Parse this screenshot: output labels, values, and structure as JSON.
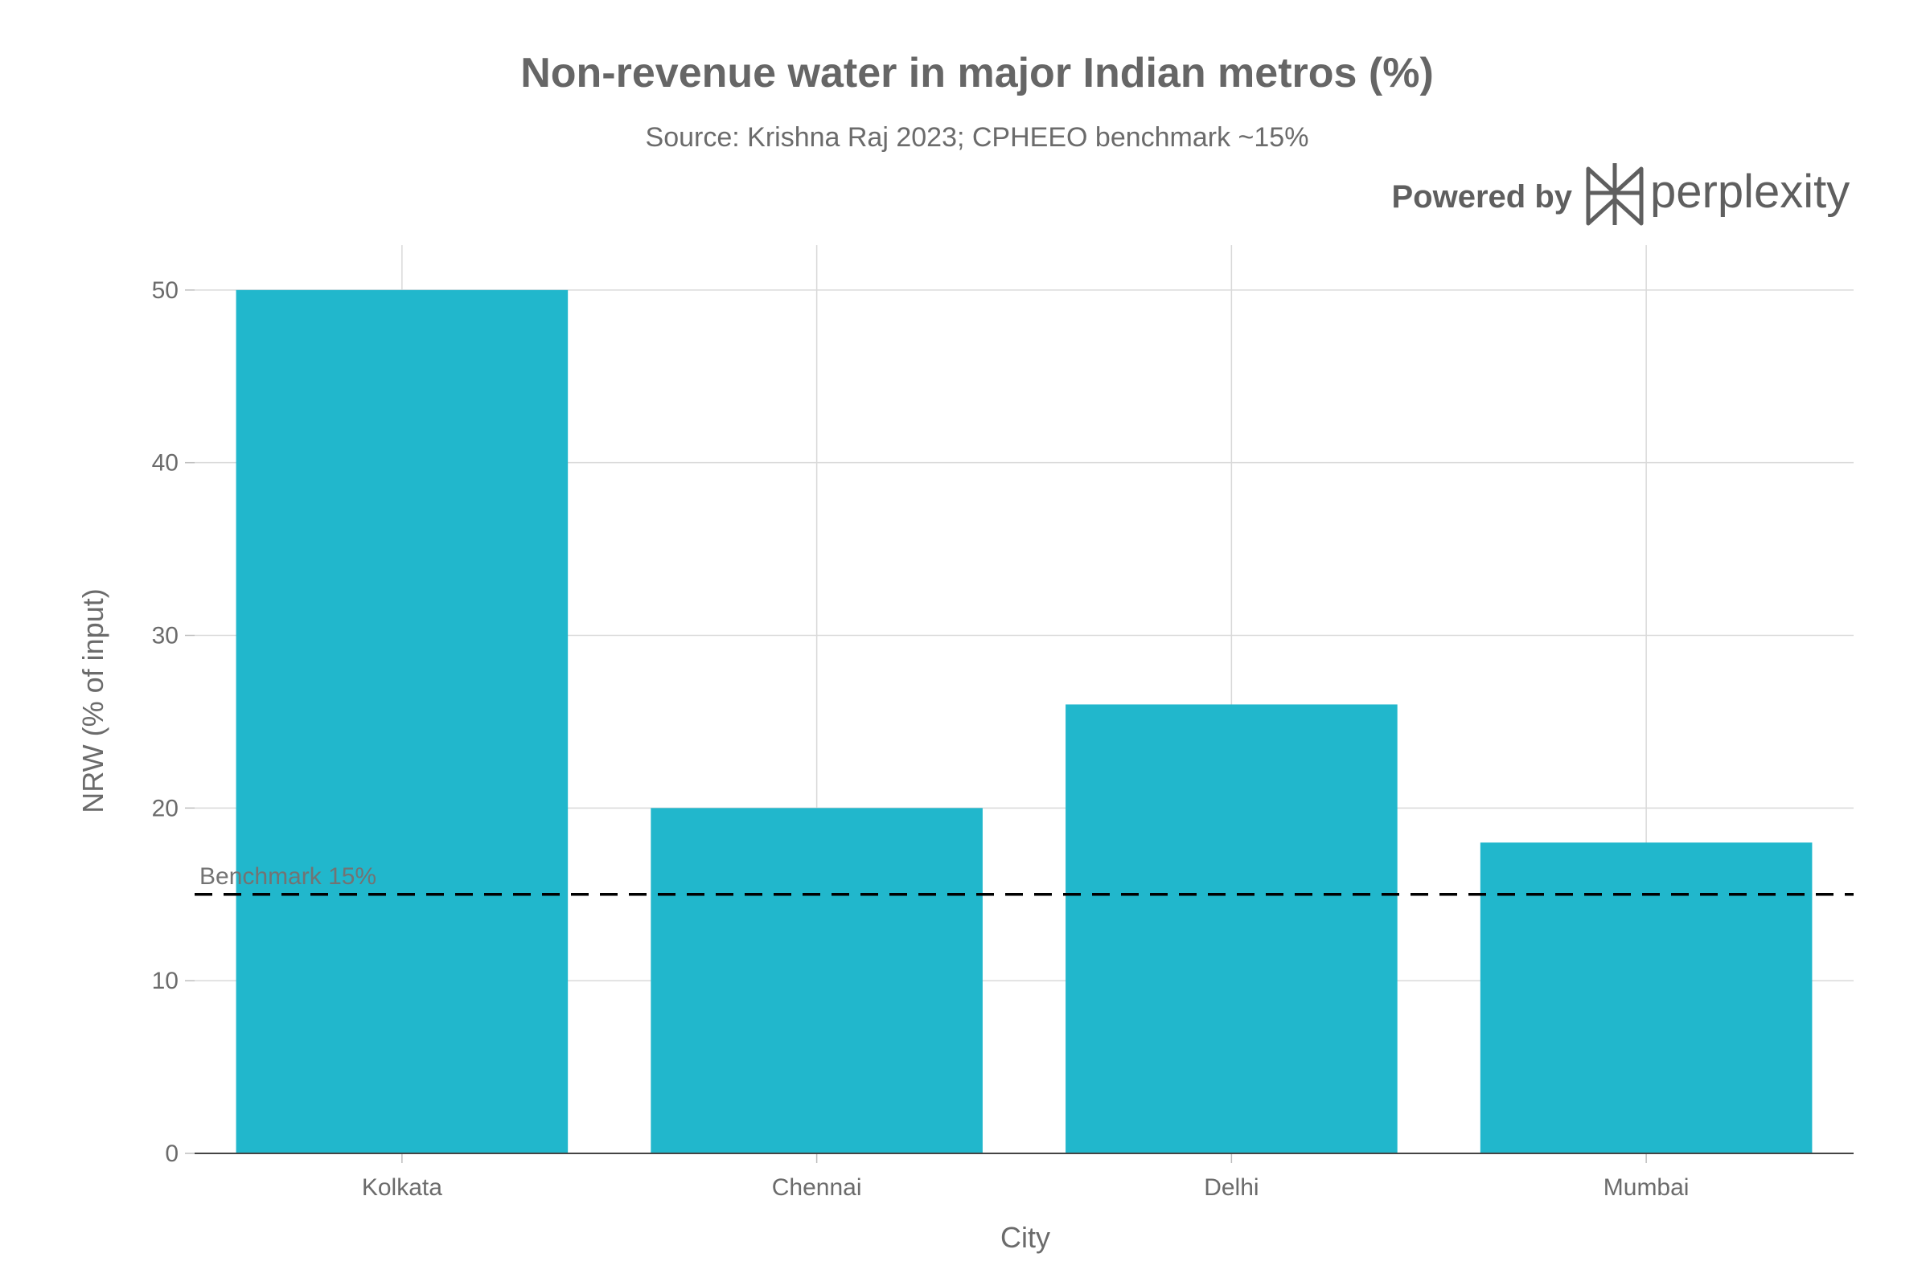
{
  "chart_data": {
    "type": "bar",
    "title": "Non-revenue water in major Indian metros (%)",
    "subtitle": "Source: Krishna Raj 2023; CPHEEO benchmark ~15%",
    "xlabel": "City",
    "ylabel": "NRW (% of input)",
    "categories": [
      "Kolkata",
      "Chennai",
      "Delhi",
      "Mumbai"
    ],
    "values": [
      50,
      20,
      26,
      18
    ],
    "ylim": [
      0,
      52.6
    ],
    "yticks": [
      0,
      10,
      20,
      30,
      40,
      50
    ],
    "grid": true,
    "bar_color": "#21b7cc",
    "benchmark": {
      "value": 15,
      "label": "Benchmark 15%",
      "style": "dashed",
      "color": "#000000"
    }
  },
  "branding": {
    "powered_by": "Powered by",
    "name": "perplexity",
    "icon": "perplexity-logo-icon"
  }
}
